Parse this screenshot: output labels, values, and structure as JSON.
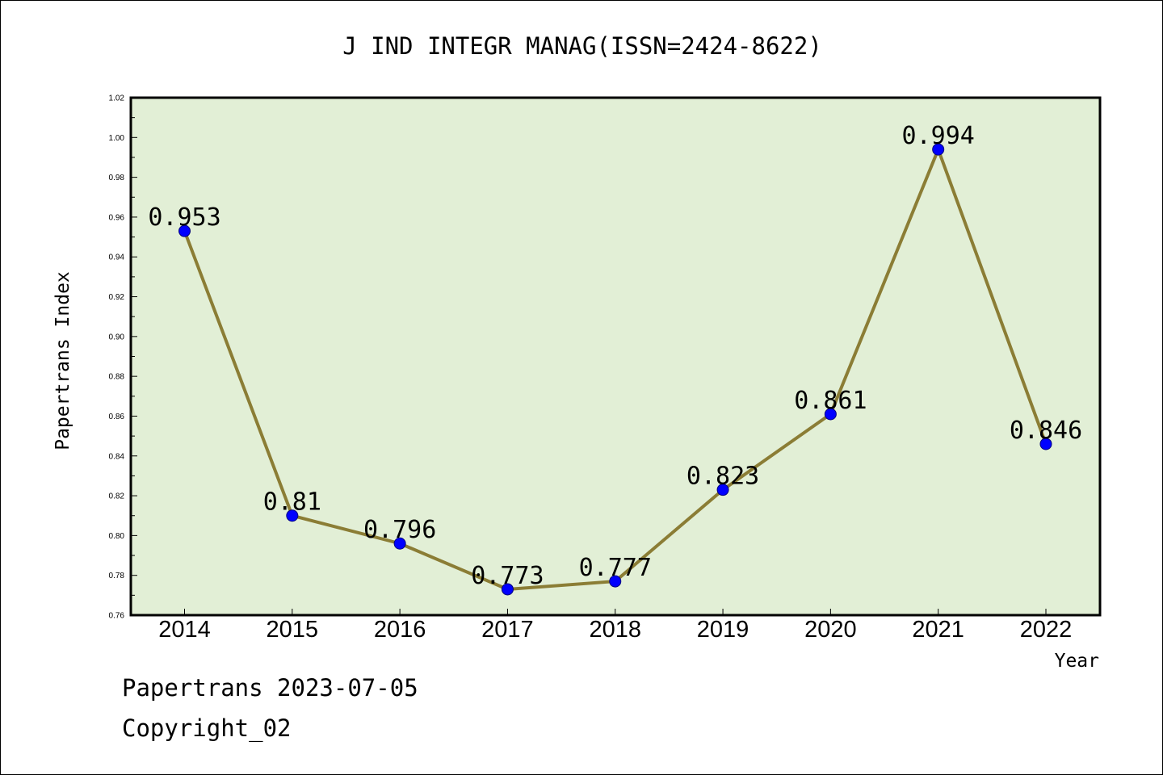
{
  "chart_data": {
    "type": "line",
    "title": "J IND INTEGR MANAG(ISSN=2424-8622)",
    "xlabel": "Year",
    "ylabel": "Papertrans Index",
    "categories": [
      "2014",
      "2015",
      "2016",
      "2017",
      "2018",
      "2019",
      "2020",
      "2021",
      "2022"
    ],
    "series": [
      {
        "values": [
          0.953,
          0.81,
          0.796,
          0.773,
          0.777,
          0.823,
          0.861,
          0.994,
          0.846
        ],
        "labels": [
          "0.953",
          "0.81",
          "0.796",
          "0.773",
          "0.777",
          "0.823",
          "0.861",
          "0.994",
          "0.846"
        ]
      }
    ],
    "ylim": [
      0.76,
      1.02
    ],
    "yticks": [
      "0.76",
      "0.78",
      "0.80",
      "0.82",
      "0.84",
      "0.86",
      "0.88",
      "0.90",
      "0.92",
      "0.94",
      "0.96",
      "0.98",
      "1.00",
      "1.02"
    ],
    "grid": false,
    "legend": "none",
    "colors": {
      "plot_background": "#e2efd6",
      "line": "#8b7d35",
      "marker_fill": "#0000ff",
      "marker_edge": "#000080"
    }
  },
  "footer": {
    "line1": "Papertrans 2023-07-05",
    "line2": "Copyright_02"
  }
}
